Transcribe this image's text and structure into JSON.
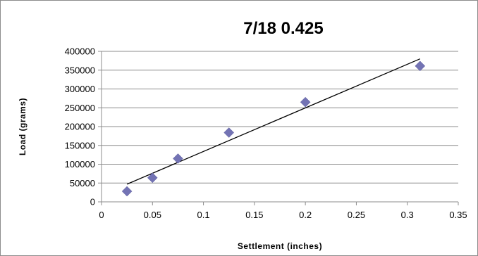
{
  "chart_data": {
    "type": "scatter",
    "title": "7/18 0.425",
    "xlabel": "Settlement (inches)",
    "ylabel": "Load (grams)",
    "xlim": [
      0,
      0.35
    ],
    "ylim": [
      0,
      400000
    ],
    "x_ticks": [
      "0",
      "0.05",
      "0.1",
      "0.15",
      "0.2",
      "0.25",
      "0.3",
      "0.35"
    ],
    "y_ticks": [
      "0",
      "50000",
      "100000",
      "150000",
      "200000",
      "250000",
      "300000",
      "350000",
      "400000"
    ],
    "grid": "horizontal",
    "legend": "none",
    "marker": "diamond",
    "marker_color": "#7373b4",
    "series": [
      {
        "x": [
          0.025,
          0.05,
          0.075,
          0.125,
          0.2,
          0.3125
        ],
        "y": [
          28000,
          64000,
          115000,
          184000,
          265000,
          361000
        ]
      }
    ],
    "trendline": {
      "type": "linear",
      "from": [
        0.025,
        47000
      ],
      "to": [
        0.3125,
        380000
      ],
      "color": "#000000"
    }
  }
}
